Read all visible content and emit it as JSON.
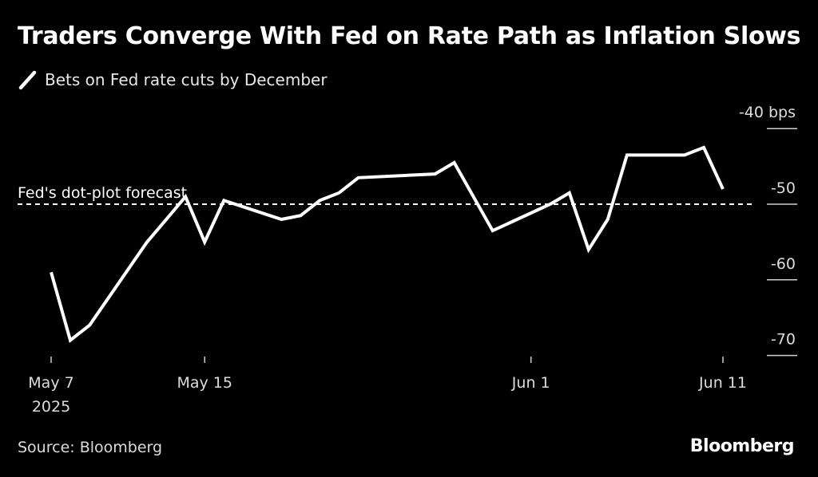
{
  "header": {
    "title": "Traders Converge With Fed on Rate Path as Inflation Slows"
  },
  "footer": {
    "source": "Source: Bloomberg",
    "brand": "Bloomberg"
  },
  "colors": {
    "background": "#000000",
    "series_line": "#ffffff",
    "reference_line": "#ffffff",
    "text": "#ffffff",
    "muted_text": "#dcdcdc"
  },
  "chart_data": {
    "type": "line",
    "title": "Traders Converge With Fed on Rate Path as Inflation Slows",
    "xlabel": "",
    "ylabel": "",
    "y_unit": "bps",
    "ylim": [
      -72,
      -37
    ],
    "y_ticks": [
      -40,
      -50,
      -60,
      -70
    ],
    "y_tick_labels": [
      "-40 bps",
      "-50",
      "-60",
      "-70"
    ],
    "x_ticks": [
      {
        "date": "2025-05-07",
        "label": "May 7",
        "sublabel": "2025"
      },
      {
        "date": "2025-05-15",
        "label": "May 15",
        "sublabel": ""
      },
      {
        "date": "2025-06-01",
        "label": "Jun 1",
        "sublabel": ""
      },
      {
        "date": "2025-06-11",
        "label": "Jun 11",
        "sublabel": ""
      }
    ],
    "grid": false,
    "legend_position": "top-left",
    "series": [
      {
        "name": "Bets on Fed rate cuts by December",
        "points": [
          {
            "x": "2025-05-07",
            "y": -59
          },
          {
            "x": "2025-05-08",
            "y": -68
          },
          {
            "x": "2025-05-09",
            "y": -66
          },
          {
            "x": "2025-05-12",
            "y": -55
          },
          {
            "x": "2025-05-13",
            "y": -52
          },
          {
            "x": "2025-05-14",
            "y": -49
          },
          {
            "x": "2025-05-15",
            "y": -55
          },
          {
            "x": "2025-05-16",
            "y": -49.5
          },
          {
            "x": "2025-05-19",
            "y": -52
          },
          {
            "x": "2025-05-20",
            "y": -51.5
          },
          {
            "x": "2025-05-21",
            "y": -49.5
          },
          {
            "x": "2025-05-22",
            "y": -48.5
          },
          {
            "x": "2025-05-23",
            "y": -46.5
          },
          {
            "x": "2025-05-27",
            "y": -46
          },
          {
            "x": "2025-05-28",
            "y": -44.5
          },
          {
            "x": "2025-05-30",
            "y": -53.5
          },
          {
            "x": "2025-06-02",
            "y": -50
          },
          {
            "x": "2025-06-03",
            "y": -48.5
          },
          {
            "x": "2025-06-04",
            "y": -56
          },
          {
            "x": "2025-06-05",
            "y": -52
          },
          {
            "x": "2025-06-06",
            "y": -43.5
          },
          {
            "x": "2025-06-09",
            "y": -43.5
          },
          {
            "x": "2025-06-10",
            "y": -42.5
          },
          {
            "x": "2025-06-11",
            "y": -48
          }
        ]
      }
    ],
    "reference_lines": [
      {
        "label": "Fed's dot-plot forecast",
        "y": -50,
        "style": "dashed"
      }
    ]
  }
}
